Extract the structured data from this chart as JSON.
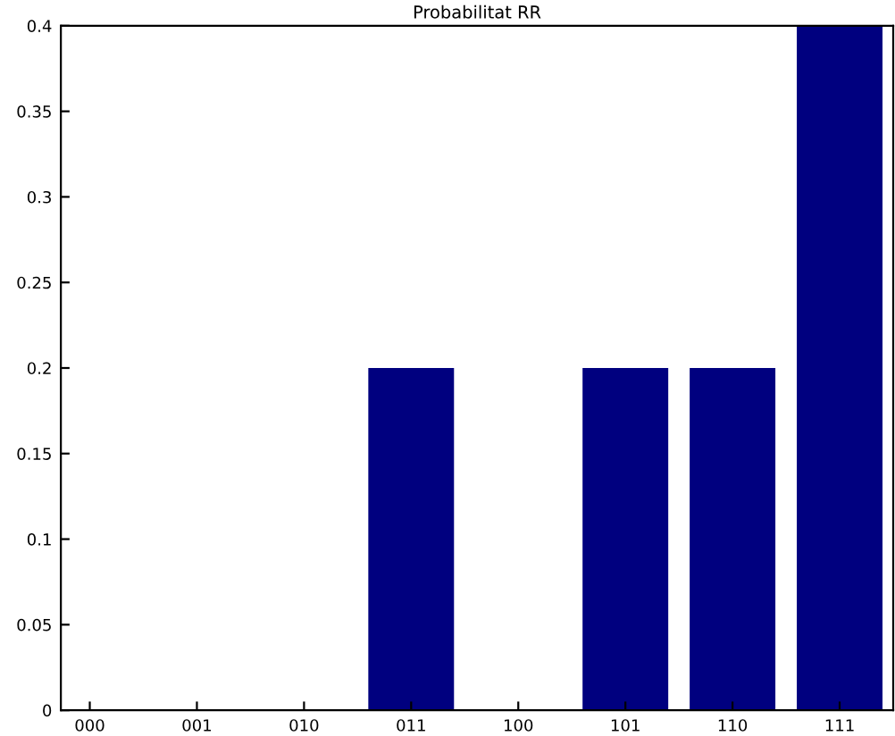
{
  "chart_data": {
    "type": "bar",
    "title": "Probabilitat RR",
    "categories": [
      "000",
      "001",
      "010",
      "011",
      "100",
      "101",
      "110",
      "111"
    ],
    "values": [
      0,
      0,
      0,
      0.2,
      0,
      0.2,
      0.2,
      0.4
    ],
    "color": "#00007f",
    "ylim": [
      0,
      0.4
    ],
    "yticks": [
      0,
      0.05,
      0.1,
      0.15,
      0.2,
      0.25,
      0.3,
      0.35,
      0.4
    ],
    "grid": false
  }
}
